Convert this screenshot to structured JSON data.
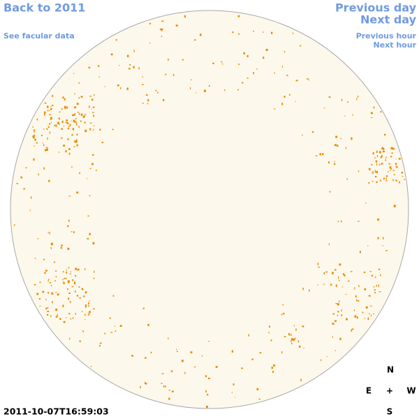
{
  "navigation": {
    "back": "Back to 2011",
    "facular_data": "See facular data",
    "previous_day": "Previous day",
    "next_day": "Next day",
    "previous_hour": "Previous hour",
    "next_hour": "Next hour"
  },
  "timestamp": "2011-10-07T16:59:03",
  "compass": {
    "north": "N",
    "east": "E",
    "center": "+",
    "west": "W",
    "south": "S"
  }
}
